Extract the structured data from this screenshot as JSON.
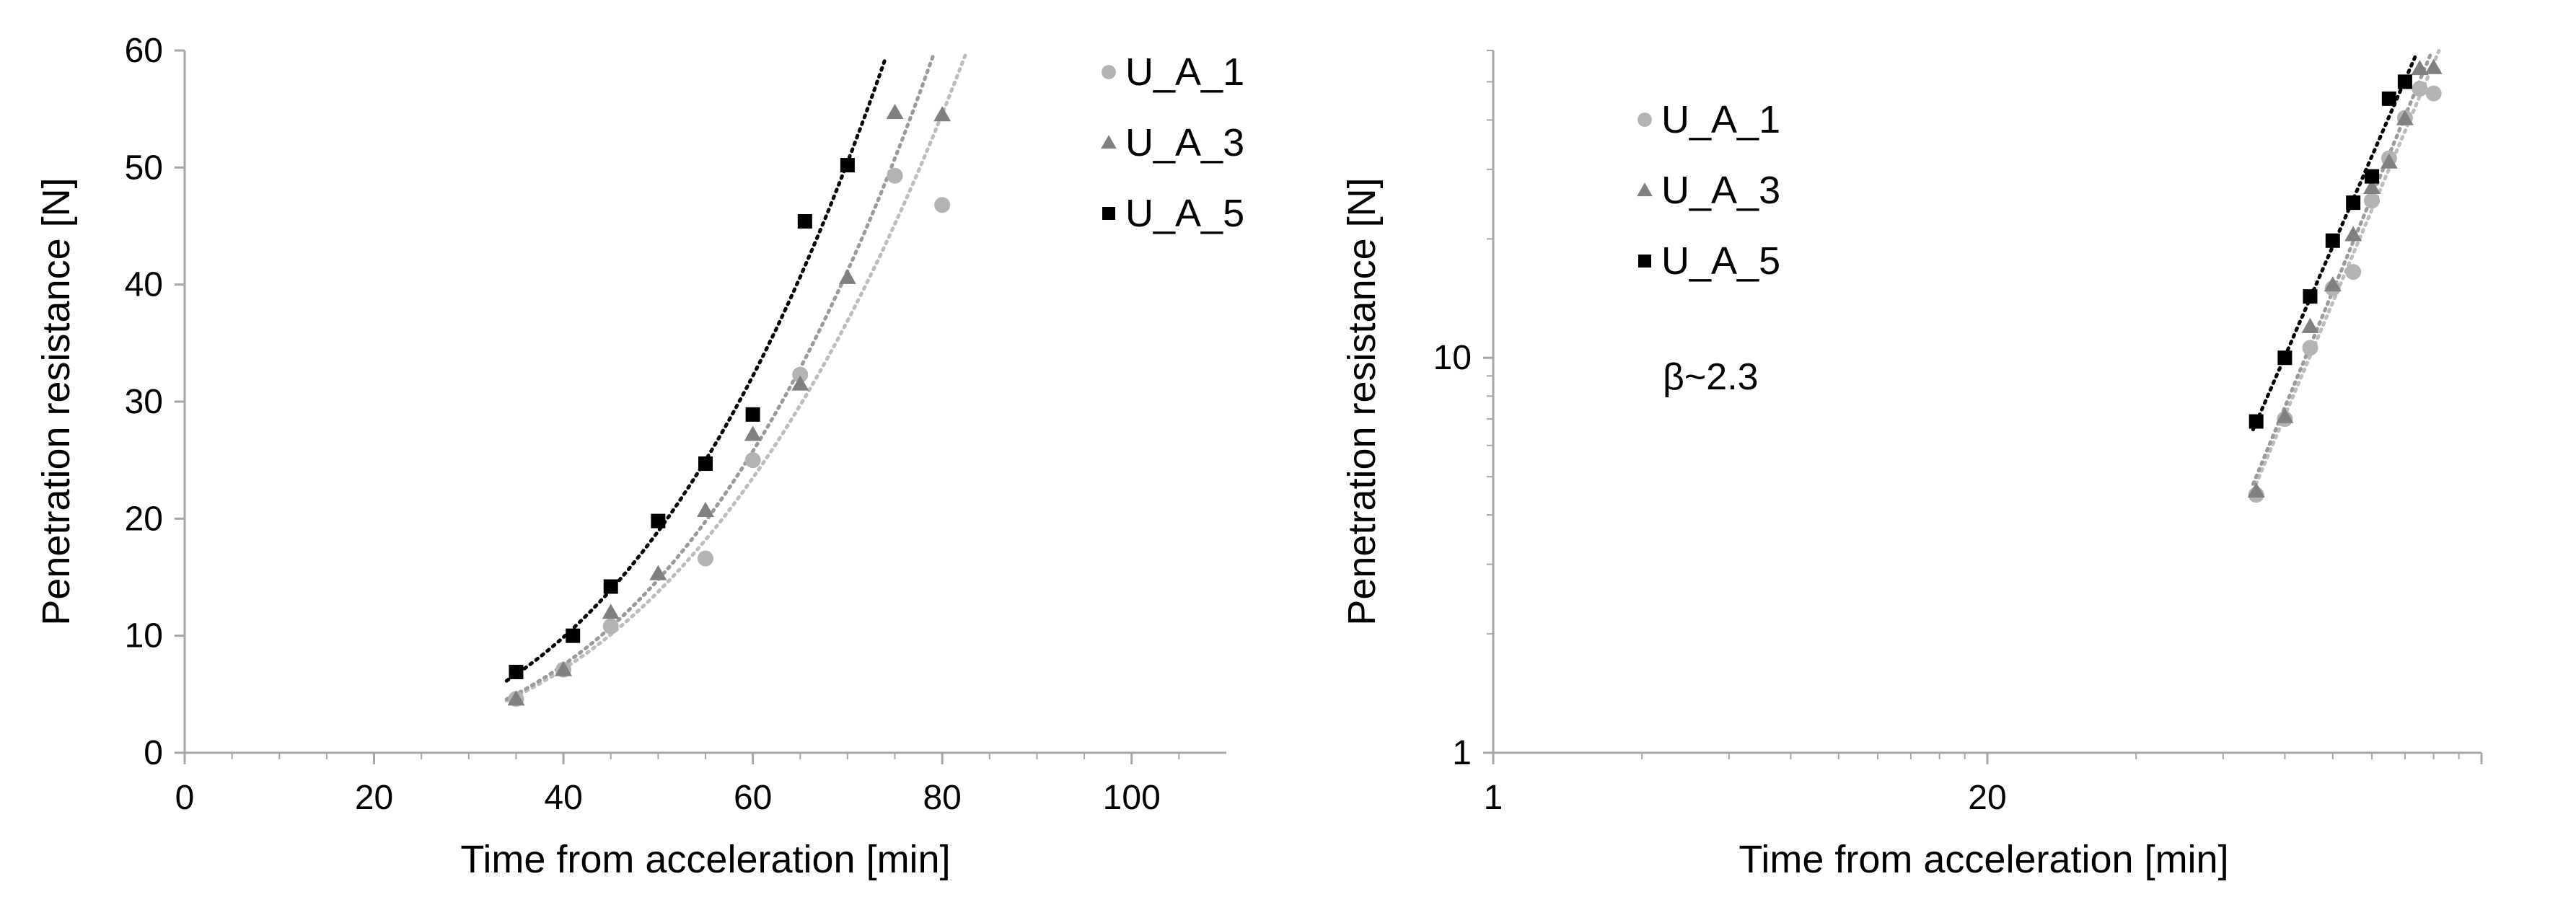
{
  "chart_data": [
    {
      "type": "scatter",
      "title": "",
      "xlabel": "Time from acceleration [min]",
      "ylabel": "Penetration resistance [N]",
      "xlim": [
        0,
        110
      ],
      "ylim": [
        0,
        60
      ],
      "xticks": [
        "0",
        "20",
        "40",
        "60",
        "80",
        "100"
      ],
      "yticks": [
        "0",
        "10",
        "20",
        "30",
        "40",
        "50",
        "60"
      ],
      "x_scale": "linear",
      "y_scale": "linear",
      "grid": false,
      "legend": "top-right",
      "trendline": "power, dotted",
      "series": [
        {
          "name": "U_A_1",
          "marker": "circle",
          "color": "#b3b3b3",
          "trend_color": "#bdbdbd",
          "x": [
            35,
            40,
            45,
            55,
            60,
            65,
            75,
            80
          ],
          "y": [
            4.6,
            7.1,
            10.8,
            16.6,
            25.0,
            32.3,
            49.3,
            46.8
          ]
        },
        {
          "name": "U_A_3",
          "marker": "triangle",
          "color": "#808080",
          "trend_color": "#9a9a9a",
          "x": [
            35,
            40,
            45,
            50,
            55,
            60,
            65,
            70,
            75,
            80
          ],
          "y": [
            4.6,
            7.1,
            12.0,
            15.3,
            20.7,
            27.2,
            31.5,
            40.6,
            54.7,
            54.5
          ]
        },
        {
          "name": "U_A_5",
          "marker": "square",
          "color": "#000000",
          "trend_color": "#000000",
          "x": [
            35,
            41,
            45,
            50,
            55,
            60,
            65.5,
            70
          ],
          "y": [
            6.9,
            10.0,
            14.2,
            19.8,
            24.7,
            28.9,
            45.4,
            50.2
          ]
        }
      ]
    },
    {
      "type": "scatter",
      "title": "",
      "xlabel": "Time from acceleration [min]",
      "ylabel": "Penetration resistance [N]",
      "xlim": [
        1,
        100
      ],
      "ylim": [
        1,
        60
      ],
      "xticks": [
        "1",
        "20"
      ],
      "yticks": [
        "1",
        "10"
      ],
      "x_scale": "log",
      "y_scale": "log",
      "grid": false,
      "legend": "top-left",
      "annotation": "β~2.3",
      "trendline": "power, dotted",
      "series": [
        {
          "name": "U_A_1",
          "marker": "circle",
          "color": "#b3b3b3",
          "trend_color": "#bdbdbd",
          "x": [
            35,
            40,
            45,
            50,
            55,
            60,
            65,
            70,
            75,
            80
          ],
          "y": [
            4.5,
            7.0,
            10.6,
            15.0,
            16.5,
            25.0,
            32.0,
            40.5,
            48.0,
            46.7
          ]
        },
        {
          "name": "U_A_3",
          "marker": "triangle",
          "color": "#808080",
          "trend_color": "#9a9a9a",
          "x": [
            35,
            40,
            45,
            50,
            55,
            60,
            65,
            70,
            75,
            80
          ],
          "y": [
            4.6,
            7.1,
            12.0,
            15.3,
            20.5,
            27.0,
            31.3,
            40.3,
            54.0,
            54.3
          ]
        },
        {
          "name": "U_A_5",
          "marker": "square",
          "color": "#000000",
          "trend_color": "#000000",
          "x": [
            35,
            40,
            45,
            50,
            55,
            60,
            65,
            70
          ],
          "y": [
            6.9,
            10.0,
            14.3,
            19.8,
            24.7,
            28.8,
            45.3,
            50.0
          ]
        }
      ]
    }
  ]
}
